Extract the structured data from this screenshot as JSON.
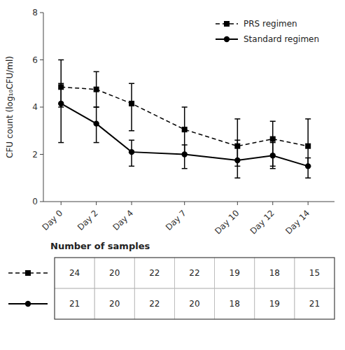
{
  "chart_data": {
    "type": "line",
    "x": [
      0,
      2,
      4,
      7,
      10,
      12,
      14
    ],
    "xlim": [
      -1,
      15.5
    ],
    "xticks": [
      {
        "value": 0,
        "label": "Day 0"
      },
      {
        "value": 2,
        "label": "Day 2"
      },
      {
        "value": 4,
        "label": "Day 4"
      },
      {
        "value": 7,
        "label": "Day 7"
      },
      {
        "value": 10,
        "label": "Day 10"
      },
      {
        "value": 12,
        "label": "Day 12"
      },
      {
        "value": 14,
        "label": "Day 14"
      }
    ],
    "ylabel": "CFU count (log₁₀CFU/ml)",
    "ylim": [
      0,
      8
    ],
    "yticks": [
      0,
      2,
      4,
      6,
      8
    ],
    "grid": false,
    "legend": "upper right",
    "table_title": "Number of samples",
    "series": [
      {
        "name": "PRS regimen",
        "color": "#000000",
        "marker": "square",
        "line_style": "dashed",
        "values": [
          4.85,
          4.75,
          4.15,
          3.05,
          2.35,
          2.65,
          2.35
        ],
        "err_low": [
          0.85,
          0.75,
          1.15,
          1.05,
          0.85,
          1.15,
          0.85
        ],
        "err_high": [
          1.15,
          0.75,
          0.85,
          0.95,
          1.15,
          0.75,
          1.15
        ],
        "n": [
          24,
          20,
          22,
          22,
          19,
          18,
          15
        ]
      },
      {
        "name": "Standard regimen",
        "color": "#000000",
        "marker": "circle",
        "line_style": "solid",
        "values": [
          4.15,
          3.3,
          2.1,
          2.0,
          1.75,
          1.95,
          1.5
        ],
        "err_low": [
          1.65,
          0.8,
          0.6,
          0.6,
          0.75,
          0.55,
          0.5
        ],
        "err_high": [
          0.85,
          0.7,
          0.5,
          0.4,
          0.85,
          0.55,
          0.35
        ],
        "n": [
          21,
          20,
          22,
          20,
          18,
          19,
          21
        ]
      }
    ]
  }
}
